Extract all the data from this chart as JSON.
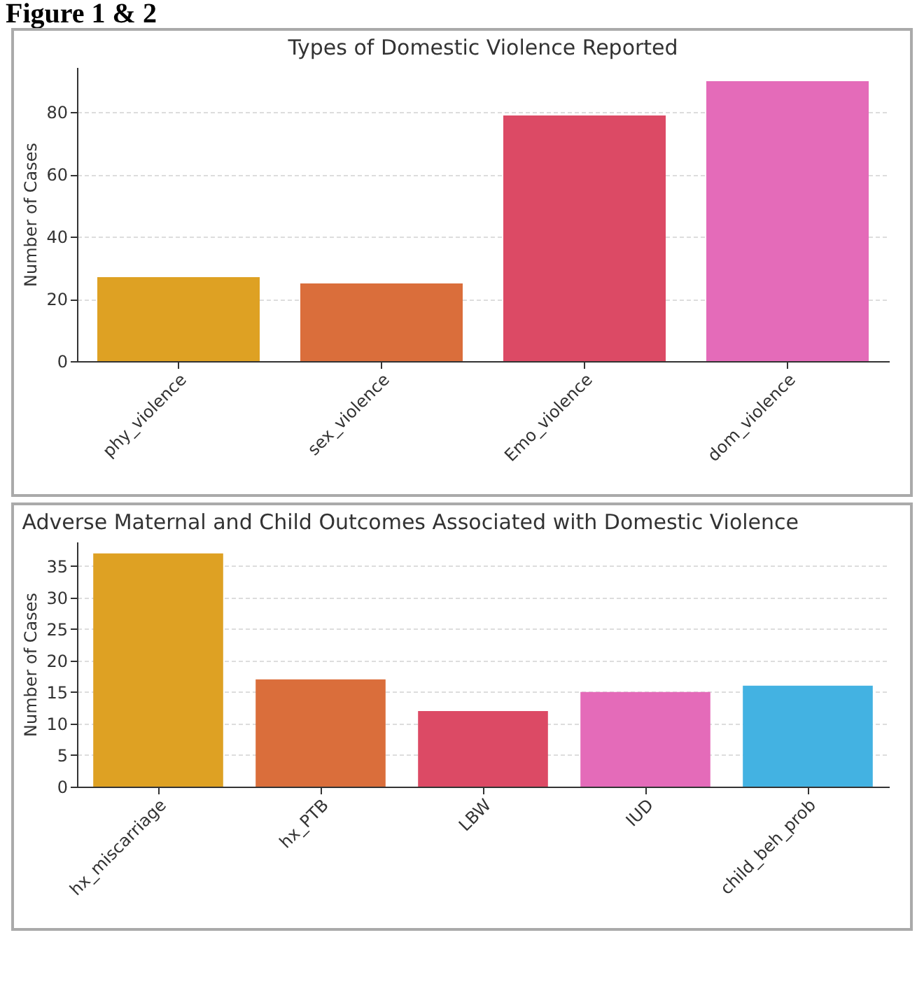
{
  "chart_data": [
    {
      "type": "bar",
      "title": "Types of Domestic Violence Reported",
      "ylabel": "Number of Cases",
      "annotations": [
        "Figure 1 & 2"
      ],
      "categories": [
        "phy_violence",
        "sex_violence",
        "Emo_violence",
        "dom_violence"
      ],
      "values": [
        27,
        25,
        79,
        90
      ],
      "colors": [
        "#dea123",
        "#da6e3b",
        "#dc4a65",
        "#e46bb9"
      ],
      "ylim": [
        0,
        94.5
      ],
      "yticks": [
        0,
        20,
        40,
        60,
        80
      ],
      "grid": "y"
    },
    {
      "type": "bar",
      "title": "Adverse Maternal and Child Outcomes Associated with Domestic Violence",
      "ylabel": "Number of Cases",
      "categories": [
        "hx_miscarriage",
        "hx_PTB",
        "LBW",
        "IUD",
        "child_beh_prob"
      ],
      "values": [
        37,
        17,
        12,
        15,
        16
      ],
      "colors": [
        "#dea123",
        "#da6e3b",
        "#dc4a65",
        "#e46bb9",
        "#43b2e2"
      ],
      "ylim": [
        0,
        38.85
      ],
      "yticks": [
        0,
        5,
        10,
        15,
        20,
        25,
        30,
        35
      ],
      "grid": "y"
    }
  ]
}
